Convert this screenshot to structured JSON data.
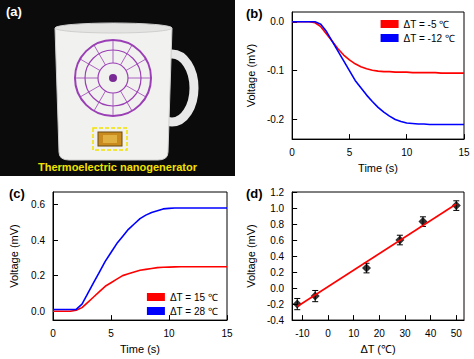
{
  "photo": {
    "label": "(a)",
    "caption": "Thermoelectric nanogenerator"
  },
  "chart_data": [
    {
      "type": "line",
      "title": "(b)",
      "x_label": "Time (s)",
      "y_label": "Voltage (mV)",
      "xlim": [
        0,
        15
      ],
      "xticks": [
        0,
        5,
        10,
        15
      ],
      "ylim": [
        -0.24,
        0.02
      ],
      "yticks": [
        -0.2,
        -0.1,
        {
          "value": 0,
          "label": "0.0"
        }
      ],
      "grid": false,
      "legend": "upper right",
      "x": [
        0,
        0.5,
        1,
        1.5,
        2,
        2.5,
        3,
        3.5,
        4,
        4.5,
        5,
        5.5,
        6,
        6.5,
        7,
        7.5,
        8,
        8.5,
        9,
        9.5,
        10,
        10.5,
        11,
        11.5,
        12,
        12.5,
        13,
        13.5,
        14,
        14.5,
        15
      ],
      "series": [
        {
          "name": "ΔT = -5 ℃",
          "color": "#ff0000",
          "values": [
            0,
            0,
            0,
            0,
            -0.002,
            -0.01,
            -0.025,
            -0.04,
            -0.055,
            -0.068,
            -0.078,
            -0.086,
            -0.092,
            -0.096,
            -0.099,
            -0.101,
            -0.102,
            -0.102,
            -0.103,
            -0.103,
            -0.103,
            -0.104,
            -0.104,
            -0.104,
            -0.104,
            -0.104,
            -0.105,
            -0.105,
            -0.105,
            -0.105,
            -0.105
          ]
        },
        {
          "name": "ΔT = -12 ℃",
          "color": "#0000ff",
          "values": [
            0,
            0,
            0,
            0,
            0,
            -0.005,
            -0.02,
            -0.04,
            -0.06,
            -0.08,
            -0.1,
            -0.12,
            -0.135,
            -0.15,
            -0.163,
            -0.175,
            -0.185,
            -0.193,
            -0.2,
            -0.204,
            -0.207,
            -0.208,
            -0.209,
            -0.209,
            -0.21,
            -0.21,
            -0.21,
            -0.21,
            -0.21,
            -0.21,
            -0.21
          ]
        }
      ]
    },
    {
      "type": "line",
      "title": "(c)",
      "x_label": "Time (s)",
      "y_label": "Voltage (mV)",
      "xlim": [
        0,
        15
      ],
      "xticks": [
        0,
        5,
        10,
        15
      ],
      "ylim": [
        -0.05,
        0.67
      ],
      "yticks": [
        {
          "value": 0,
          "label": "0.0"
        },
        0.2,
        0.4,
        0.6
      ],
      "grid": false,
      "legend": "lower right",
      "x": [
        0,
        0.5,
        1,
        1.5,
        2,
        2.5,
        3,
        3.5,
        4,
        4.5,
        5,
        5.5,
        6,
        6.5,
        7,
        7.5,
        8,
        8.5,
        9,
        9.5,
        10,
        10.5,
        11,
        11.5,
        12,
        12.5,
        13,
        13.5,
        14,
        14.5,
        15
      ],
      "series": [
        {
          "name": "ΔT = 15 ℃",
          "color": "#ff0000",
          "values": [
            0,
            0,
            0,
            0,
            0.005,
            0.02,
            0.05,
            0.08,
            0.11,
            0.14,
            0.16,
            0.18,
            0.2,
            0.21,
            0.22,
            0.23,
            0.235,
            0.24,
            0.245,
            0.247,
            0.248,
            0.249,
            0.25,
            0.25,
            0.25,
            0.25,
            0.25,
            0.25,
            0.25,
            0.25,
            0.25
          ]
        },
        {
          "name": "ΔT = 28 ℃",
          "color": "#0000ff",
          "values": [
            0.01,
            0.01,
            0.01,
            0.01,
            0.01,
            0.04,
            0.1,
            0.16,
            0.22,
            0.28,
            0.33,
            0.38,
            0.42,
            0.46,
            0.49,
            0.52,
            0.54,
            0.555,
            0.565,
            0.575,
            0.578,
            0.58,
            0.58,
            0.58,
            0.58,
            0.58,
            0.58,
            0.58,
            0.58,
            0.58,
            0.58
          ]
        }
      ]
    },
    {
      "type": "scatter",
      "title": "(d)",
      "x_label": "ΔT (℃)",
      "y_label": "Voltage (mV)",
      "xlim": [
        -14,
        53
      ],
      "xticks": [
        -10,
        0,
        10,
        20,
        30,
        40,
        50
      ],
      "ylim": [
        -0.4,
        1.2
      ],
      "yticks": [
        -0.4,
        -0.2,
        {
          "value": 0,
          "label": "0.0"
        },
        0.2,
        0.4,
        0.6,
        0.8,
        {
          "value": 1,
          "label": "1.0"
        },
        1.2
      ],
      "grid": false,
      "series": [
        {
          "type": "line",
          "color": "#ff0000",
          "line_style": "solid",
          "x": [
            -12,
            50
          ],
          "values": [
            -0.23,
            1.05
          ]
        },
        {
          "type": "scatter",
          "color": "#000000",
          "marker": "diamond",
          "x": [
            -12,
            -5,
            15,
            28,
            37,
            50
          ],
          "values": [
            -0.2,
            -0.1,
            0.25,
            0.6,
            0.83,
            1.03
          ],
          "errors": [
            0.07,
            0.07,
            0.06,
            0.06,
            0.06,
            0.06
          ]
        }
      ]
    }
  ]
}
